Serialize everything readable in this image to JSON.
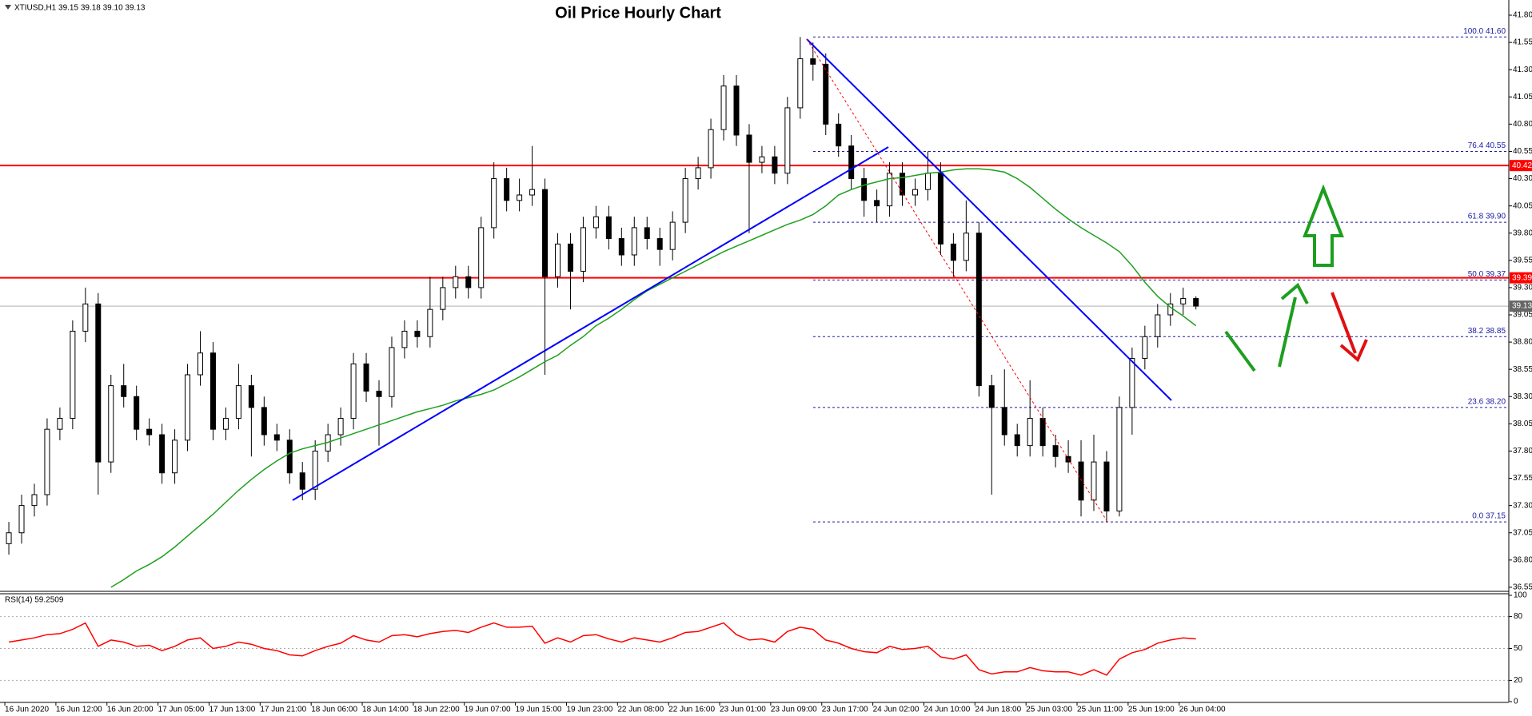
{
  "chart_data": [
    {
      "type": "candlestick",
      "title": "Oil Price Hourly Chart",
      "header": "XTIUSD,H1 39.15 39.18 39.10 39.13",
      "categories": [
        "16 Jun 2020",
        null,
        null,
        null,
        "16 Jun 12:00",
        null,
        null,
        null,
        "16 Jun 20:00",
        null,
        null,
        null,
        "17 Jun 05:00",
        null,
        null,
        null,
        "17 Jun 13:00",
        null,
        null,
        null,
        "17 Jun 21:00",
        null,
        null,
        null,
        "18 Jun 06:00",
        null,
        null,
        null,
        "18 Jun 14:00",
        null,
        null,
        null,
        "18 Jun 22:00",
        null,
        null,
        null,
        "19 Jun 07:00",
        null,
        null,
        null,
        "19 Jun 15:00",
        null,
        null,
        null,
        "19 Jun 23:00",
        null,
        null,
        null,
        "22 Jun 08:00",
        null,
        null,
        null,
        "22 Jun 16:00",
        null,
        null,
        null,
        "23 Jun 01:00",
        null,
        null,
        null,
        "23 Jun 09:00",
        null,
        null,
        null,
        "23 Jun 17:00",
        null,
        null,
        null,
        "24 Jun 02:00",
        null,
        null,
        null,
        "24 Jun 10:00",
        null,
        null,
        null,
        "24 Jun 18:00",
        null,
        null,
        null,
        "25 Jun 03:00",
        null,
        null,
        null,
        "25 Jun 11:00",
        null,
        null,
        null,
        "25 Jun 19:00",
        null,
        null,
        null,
        "26 Jun 04:00",
        null
      ],
      "open": [
        36.95,
        37.05,
        37.3,
        37.4,
        38.0,
        38.1,
        38.9,
        39.15,
        37.7,
        38.4,
        38.3,
        38.0,
        37.95,
        37.6,
        37.9,
        38.5,
        38.7,
        38.0,
        38.1,
        38.4,
        38.2,
        37.95,
        37.9,
        37.6,
        37.45,
        37.8,
        37.95,
        38.1,
        38.6,
        38.35,
        38.3,
        38.75,
        38.9,
        38.85,
        39.1,
        39.3,
        39.4,
        39.3,
        39.85,
        40.3,
        40.1,
        40.15,
        40.2,
        39.4,
        39.7,
        39.45,
        39.85,
        39.95,
        39.75,
        39.6,
        39.85,
        39.75,
        39.65,
        39.9,
        40.3,
        40.4,
        40.75,
        41.15,
        40.7,
        40.45,
        40.5,
        40.35,
        40.95,
        41.4,
        41.35,
        40.8,
        40.6,
        40.3,
        40.1,
        40.05,
        40.35,
        40.15,
        40.2,
        40.35,
        39.7,
        39.55,
        39.8,
        38.4,
        38.2,
        37.95,
        37.85,
        38.1,
        37.85,
        37.75,
        37.7,
        37.35,
        37.7,
        37.25,
        38.2,
        38.65,
        38.85,
        39.05,
        39.15,
        39.2
      ],
      "high": [
        37.15,
        37.4,
        37.5,
        38.1,
        38.2,
        39.0,
        39.3,
        39.25,
        38.5,
        38.6,
        38.4,
        38.1,
        38.05,
        38.0,
        38.6,
        38.9,
        38.8,
        38.2,
        38.6,
        38.5,
        38.3,
        38.05,
        38.0,
        37.7,
        37.9,
        38.05,
        38.2,
        38.7,
        38.7,
        38.45,
        38.85,
        39.0,
        39.0,
        39.4,
        39.4,
        39.5,
        39.5,
        39.95,
        40.45,
        40.4,
        40.3,
        40.6,
        40.3,
        39.8,
        39.8,
        39.95,
        40.05,
        40.05,
        39.85,
        39.95,
        39.95,
        39.85,
        40.0,
        40.4,
        40.5,
        40.85,
        41.25,
        41.25,
        40.8,
        40.6,
        40.6,
        41.05,
        41.6,
        41.55,
        41.45,
        40.9,
        40.7,
        40.4,
        40.2,
        40.45,
        40.45,
        40.3,
        40.55,
        40.45,
        39.8,
        40.1,
        39.9,
        38.5,
        38.55,
        38.05,
        38.45,
        38.2,
        37.95,
        37.9,
        37.9,
        37.95,
        37.8,
        38.3,
        38.75,
        38.95,
        39.15,
        39.25,
        39.3,
        39.22
      ],
      "low": [
        36.85,
        36.95,
        37.2,
        37.3,
        37.9,
        38.0,
        38.8,
        37.4,
        37.6,
        38.2,
        37.9,
        37.85,
        37.5,
        37.5,
        37.8,
        38.4,
        37.9,
        37.9,
        38.0,
        37.75,
        37.85,
        37.8,
        37.5,
        37.35,
        37.35,
        37.7,
        37.85,
        38.0,
        38.25,
        37.85,
        38.2,
        38.65,
        38.75,
        38.75,
        39.0,
        39.2,
        39.2,
        39.2,
        39.75,
        40.0,
        40.0,
        40.05,
        38.5,
        39.3,
        39.1,
        39.35,
        39.75,
        39.65,
        39.5,
        39.5,
        39.65,
        39.5,
        39.55,
        39.8,
        40.2,
        40.3,
        40.65,
        40.6,
        39.8,
        40.35,
        40.25,
        40.25,
        40.85,
        41.2,
        40.7,
        40.5,
        40.2,
        39.95,
        39.9,
        39.95,
        40.05,
        40.05,
        40.1,
        39.6,
        39.4,
        39.45,
        38.3,
        37.4,
        37.85,
        37.75,
        37.75,
        37.75,
        37.65,
        37.6,
        37.2,
        37.25,
        37.15,
        37.2,
        37.95,
        38.55,
        38.75,
        38.95,
        39.05,
        39.1
      ],
      "close": [
        37.05,
        37.3,
        37.4,
        38.0,
        38.1,
        38.9,
        39.15,
        37.7,
        38.4,
        38.3,
        38.0,
        37.95,
        37.6,
        37.9,
        38.5,
        38.7,
        38.0,
        38.1,
        38.4,
        38.2,
        37.95,
        37.9,
        37.6,
        37.45,
        37.8,
        37.95,
        38.1,
        38.6,
        38.35,
        38.3,
        38.75,
        38.9,
        38.85,
        39.1,
        39.3,
        39.4,
        39.3,
        39.85,
        40.3,
        40.1,
        40.15,
        40.2,
        39.4,
        39.7,
        39.45,
        39.85,
        39.95,
        39.75,
        39.6,
        39.85,
        39.75,
        39.65,
        39.9,
        40.3,
        40.4,
        40.75,
        41.15,
        40.7,
        40.45,
        40.5,
        40.35,
        40.95,
        41.4,
        41.35,
        40.8,
        40.6,
        40.3,
        40.1,
        40.05,
        40.35,
        40.15,
        40.2,
        40.35,
        39.7,
        39.55,
        39.8,
        38.4,
        38.2,
        37.95,
        37.85,
        38.1,
        37.85,
        37.75,
        37.7,
        37.35,
        37.7,
        37.25,
        38.2,
        38.65,
        38.85,
        39.05,
        39.15,
        39.2,
        39.13
      ],
      "up_color": "#ffffff",
      "down_color": "#000000",
      "ma": {
        "color": "#1ea01e",
        "values": [
          null,
          null,
          null,
          null,
          null,
          null,
          null,
          null,
          36.55,
          36.62,
          36.7,
          36.76,
          36.83,
          36.92,
          37.02,
          37.12,
          37.22,
          37.33,
          37.44,
          37.54,
          37.63,
          37.71,
          37.78,
          37.82,
          37.85,
          37.88,
          37.92,
          37.96,
          38.0,
          38.04,
          38.08,
          38.12,
          38.16,
          38.19,
          38.22,
          38.26,
          38.29,
          38.32,
          38.36,
          38.42,
          38.48,
          38.55,
          38.62,
          38.68,
          38.77,
          38.85,
          38.95,
          39.02,
          39.1,
          39.19,
          39.27,
          39.33,
          39.39,
          39.45,
          39.51,
          39.57,
          39.63,
          39.68,
          39.73,
          39.78,
          39.83,
          39.88,
          39.92,
          39.97,
          40.05,
          40.15,
          40.2,
          40.24,
          40.27,
          40.3,
          40.31,
          40.33,
          40.35,
          40.36,
          40.38,
          40.39,
          40.39,
          40.38,
          40.36,
          40.3,
          40.22,
          40.12,
          40.02,
          39.93,
          39.85,
          39.78,
          39.71,
          39.63,
          39.5,
          39.35,
          39.22,
          39.12,
          39.04,
          38.95
        ]
      },
      "ylim": [
        36.52,
        41.91
      ],
      "yticks": [
        36.55,
        {
          "value": 36.8,
          "label": "36.80"
        },
        37.05,
        {
          "value": 37.3,
          "label": "37.30"
        },
        37.55,
        {
          "value": 37.8,
          "label": "37.80"
        },
        38.05,
        {
          "value": 38.3,
          "label": "38.30"
        },
        38.55,
        {
          "value": 38.8,
          "label": "38.80"
        },
        39.05,
        {
          "value": 39.3,
          "label": "39.30"
        },
        39.55,
        {
          "value": 39.8,
          "label": "39.80"
        },
        40.05,
        {
          "value": 40.3,
          "label": "40.30"
        },
        40.55,
        {
          "value": 40.8,
          "label": "40.80"
        },
        41.05,
        {
          "value": 41.3,
          "label": "41.30"
        },
        41.55,
        {
          "value": 41.8,
          "label": "41.80"
        }
      ],
      "fib_levels": [
        {
          "value": 41.6,
          "label": "100.0 41.60"
        },
        {
          "value": 40.55,
          "label": "76.4 40.55"
        },
        {
          "value": 39.9,
          "label": "61.8 39.90"
        },
        {
          "value": 39.37,
          "label": "50.0 39.37"
        },
        {
          "value": 38.85,
          "label": "38.2 38.85"
        },
        {
          "value": 38.2,
          "label": "23.6 38.20"
        },
        {
          "value": 37.15,
          "label": "0.0 37.15"
        }
      ],
      "fib_color": "#1a1aa0",
      "hlines": [
        40.42,
        39.39
      ],
      "hline_color": "#ff0000",
      "last": 39.13,
      "last_color": "#808080"
    },
    {
      "type": "line",
      "title": "RSI(14) 59.2509",
      "color": "#ff0000",
      "values": [
        56,
        58,
        60,
        63,
        64,
        68,
        74,
        52,
        58,
        56,
        52,
        53,
        48,
        52,
        58,
        60,
        50,
        52,
        56,
        54,
        50,
        48,
        44,
        43,
        48,
        52,
        55,
        62,
        58,
        56,
        62,
        63,
        61,
        64,
        66,
        67,
        65,
        70,
        74,
        70,
        70,
        71,
        55,
        60,
        56,
        62,
        63,
        59,
        56,
        60,
        58,
        56,
        60,
        65,
        66,
        70,
        74,
        63,
        58,
        59,
        56,
        66,
        70,
        68,
        58,
        55,
        50,
        47,
        46,
        52,
        49,
        50,
        52,
        42,
        40,
        44,
        30,
        26,
        28,
        28,
        32,
        29,
        28,
        28,
        25,
        30,
        25,
        40,
        46,
        49,
        55,
        58,
        60,
        59
      ],
      "ylim": [
        0,
        100
      ],
      "yticks": [
        0,
        20,
        50,
        80,
        100
      ]
    }
  ]
}
